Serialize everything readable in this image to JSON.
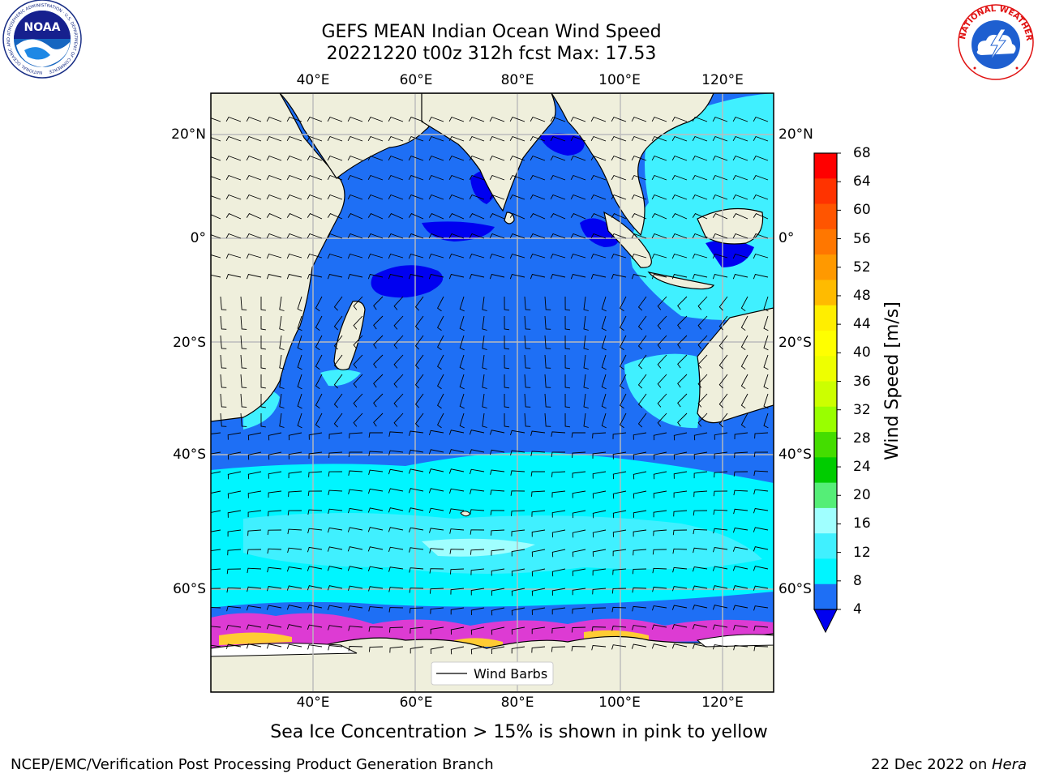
{
  "header": {
    "title_line1": "GEFS MEAN Indian Ocean Wind Speed",
    "title_line2": "20221220 t00z 312h fcst   Max: 17.53"
  },
  "logos": {
    "left_text": "NOAA",
    "left_ring_text": "NATIONAL OCEANIC AND ATMOSPHERIC ADMINISTRATION · U.S. DEPARTMENT OF COMMERCE",
    "right_ring_text": "NATIONAL WEATHER SERVICE"
  },
  "map": {
    "lon_labels": [
      "40°E",
      "60°E",
      "80°E",
      "100°E",
      "120°E"
    ],
    "lat_labels": [
      "20°N",
      "0°",
      "20°S",
      "40°S",
      "60°S"
    ],
    "legend_label": "Wind Barbs",
    "colors": {
      "land": "#efefdc",
      "ocean_4_8": "#1e6ff5",
      "ocean_0_4": "#0000f0",
      "ocean_8_12": "#00f5ff",
      "ocean_12_16": "#40f0ff",
      "ocean_16_20": "#a0ffff",
      "sea_ice": "#ff33cc"
    }
  },
  "colorbar": {
    "label": "Wind Speed [m/s]",
    "ticks": [
      "68",
      "64",
      "60",
      "56",
      "52",
      "48",
      "44",
      "40",
      "36",
      "32",
      "28",
      "24",
      "20",
      "16",
      "12",
      "8",
      "4"
    ],
    "colors": [
      "#ff0000",
      "#ff3300",
      "#ff5500",
      "#ff7700",
      "#ff9900",
      "#ffbb00",
      "#ffee00",
      "#ffff00",
      "#eeff00",
      "#ccff00",
      "#99ff00",
      "#44dd00",
      "#00cc00",
      "#55ee77",
      "#a0ffff",
      "#40f0ff",
      "#00f5ff",
      "#1e6ff5"
    ],
    "underflow_color": "#0000f0"
  },
  "footer": {
    "note": "Sea Ice Concentration > 15% is shown in pink to yellow",
    "left": "NCEP/EMC/Verification Post Processing Product Generation Branch",
    "date": "22 Dec 2022 on ",
    "machine": "Hera"
  }
}
